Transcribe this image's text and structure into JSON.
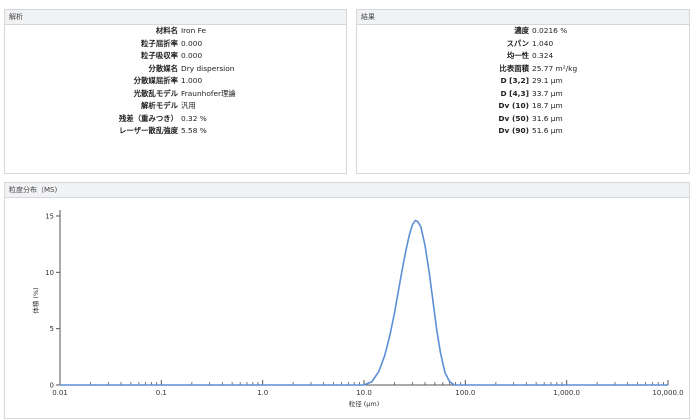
{
  "analysis": {
    "title": "解析",
    "rows": [
      {
        "label": "材料名",
        "value": "Iron Fe"
      },
      {
        "label": "粒子屈折率",
        "value": "0.000"
      },
      {
        "label": "粒子吸収率",
        "value": "0.000"
      },
      {
        "label": "分散媒名",
        "value": "Dry dispersion"
      },
      {
        "label": "分散媒屈折率",
        "value": "1.000"
      },
      {
        "label": "光散乱モデル",
        "value": "Fraunhofer理論"
      },
      {
        "label": "解析モデル",
        "value": "汎用"
      },
      {
        "label": "残差（重みつき）",
        "value": "0.32 %"
      },
      {
        "label": "レーザー散乱強度",
        "value": "5.58 %"
      }
    ]
  },
  "results": {
    "title": "結果",
    "rows": [
      {
        "label": "濃度",
        "value": "0.0216 %"
      },
      {
        "label": "スパン",
        "value": "1.040"
      },
      {
        "label": "均一性",
        "value": "0.324"
      },
      {
        "label": "比表面積",
        "value": "25.77 m²/kg"
      },
      {
        "label": "D [3,2]",
        "value": "29.1 μm"
      },
      {
        "label": "D [4,3]",
        "value": "33.7 μm"
      },
      {
        "label": "Dv (10)",
        "value": "18.7 μm"
      },
      {
        "label": "Dv (50)",
        "value": "31.6 μm"
      },
      {
        "label": "Dv (90)",
        "value": "51.6 μm"
      }
    ]
  },
  "chart_panel": {
    "title": "粒度分布（MS)"
  },
  "chart_data": {
    "type": "line",
    "xscale": "log",
    "xlim": [
      0.01,
      10000
    ],
    "ylim": [
      0,
      15
    ],
    "xlabel": "粒径 (μm)",
    "ylabel": "体積 (%)",
    "xtick_labels": [
      "0.01",
      "0.1",
      "1.0",
      "10.0",
      "100.0",
      "1,000.0",
      "10,000.0"
    ],
    "ytick_labels": [
      "0",
      "5",
      "10",
      "15"
    ],
    "series": [
      {
        "color": "#5b8fd6",
        "points": [
          [
            0.01,
            0
          ],
          [
            10.0,
            0
          ],
          [
            12.0,
            0.3
          ],
          [
            14.0,
            1.2
          ],
          [
            16.0,
            2.6
          ],
          [
            18.0,
            4.4
          ],
          [
            20.0,
            6.4
          ],
          [
            22.0,
            8.5
          ],
          [
            24.0,
            10.4
          ],
          [
            26.0,
            12.0
          ],
          [
            28.0,
            13.3
          ],
          [
            30.0,
            14.2
          ],
          [
            32.0,
            14.6
          ],
          [
            34.0,
            14.5
          ],
          [
            36.5,
            14.0
          ],
          [
            40.0,
            12.4
          ],
          [
            44.0,
            10.0
          ],
          [
            48.0,
            7.4
          ],
          [
            52.0,
            5.0
          ],
          [
            57.0,
            2.8
          ],
          [
            63.0,
            1.1
          ],
          [
            70.0,
            0.3
          ],
          [
            78.0,
            0
          ],
          [
            10000,
            0
          ]
        ]
      }
    ]
  }
}
